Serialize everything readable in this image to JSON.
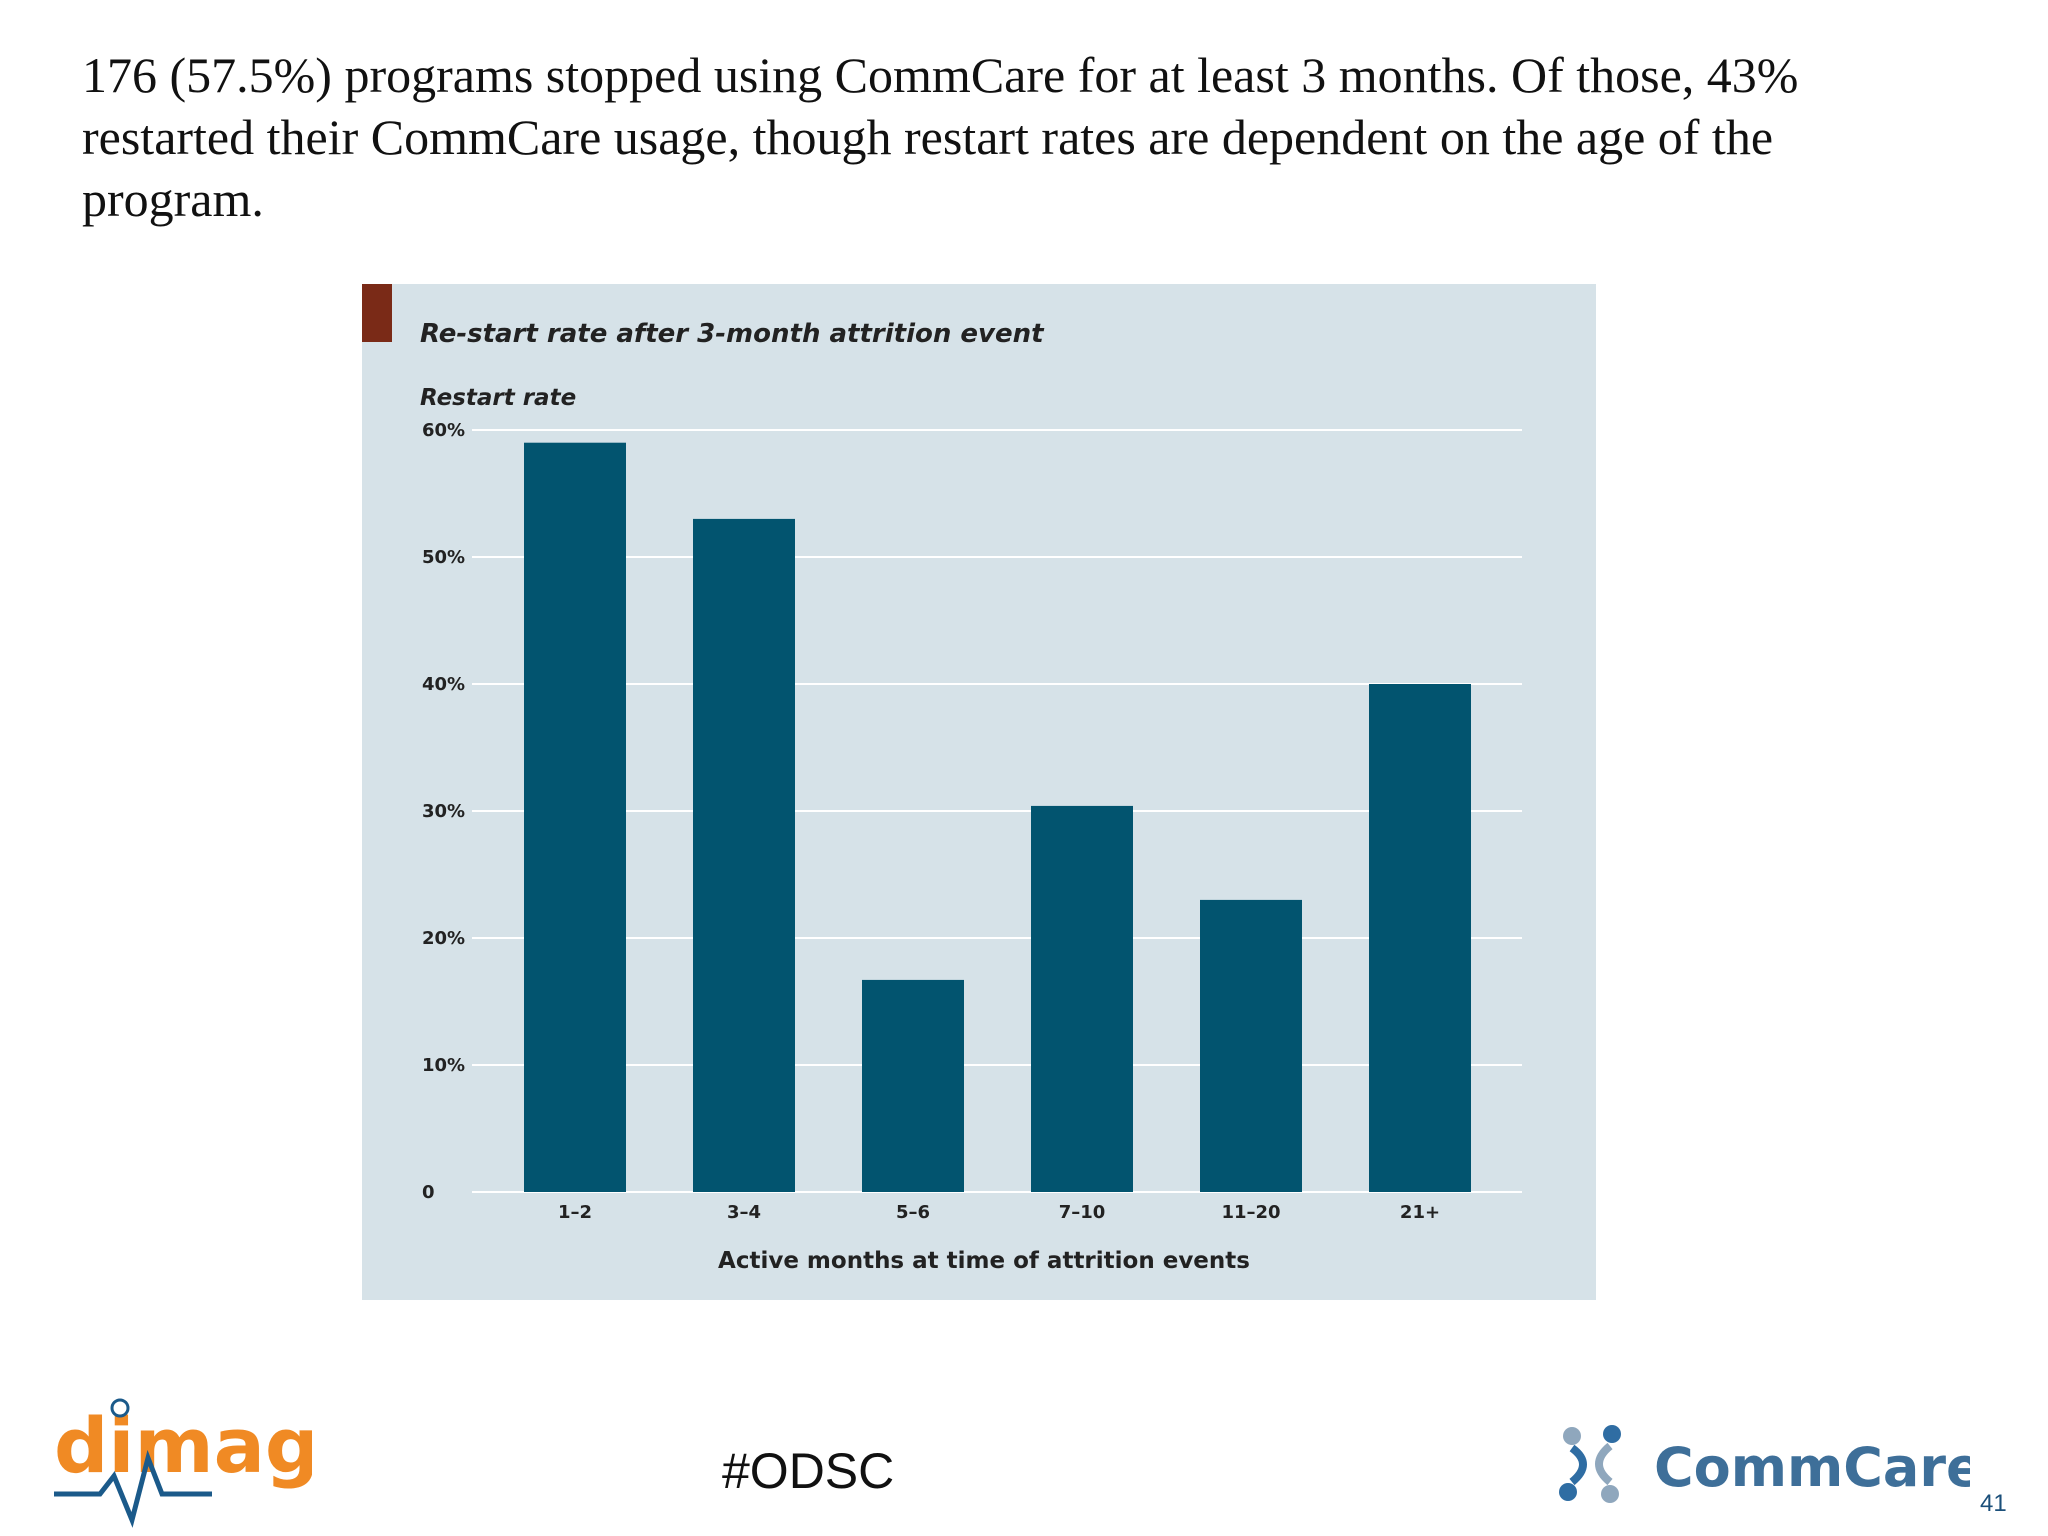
{
  "slide": {
    "headline": "176 (57.5%) programs stopped using CommCare for at least 3 months. Of those, 43% restarted their CommCare usage, though restart rates are dependent on the age of the program.",
    "hashtag": "#ODSC",
    "page_number": "41"
  },
  "logos": {
    "left": {
      "name": "dimagi",
      "text": "dimagi",
      "color": "#f08a24"
    },
    "right": {
      "name": "CommCare",
      "text": "CommCare",
      "color": "#3e6f99"
    }
  },
  "colors": {
    "bar": "#02546f",
    "panel_background": "#d6e2e8",
    "title_accent": "#7a2a17",
    "gridline": "#ffffff"
  },
  "chart_data": {
    "type": "bar",
    "title": "Re-start rate after 3-month attrition event",
    "ylabel": "Restart rate",
    "xlabel": "Active months at time of attrition events",
    "categories": [
      "1–2",
      "3–4",
      "5–6",
      "7–10",
      "11–20",
      "21+"
    ],
    "values": [
      59,
      53,
      16.7,
      30.4,
      23,
      40
    ],
    "ylim": [
      0,
      60
    ],
    "yticks": [
      0,
      10,
      20,
      30,
      40,
      50,
      60
    ],
    "ytick_labels": [
      "0",
      "10%",
      "20%",
      "30%",
      "40%",
      "50%",
      "60%"
    ],
    "grid": true,
    "legend": "none"
  }
}
